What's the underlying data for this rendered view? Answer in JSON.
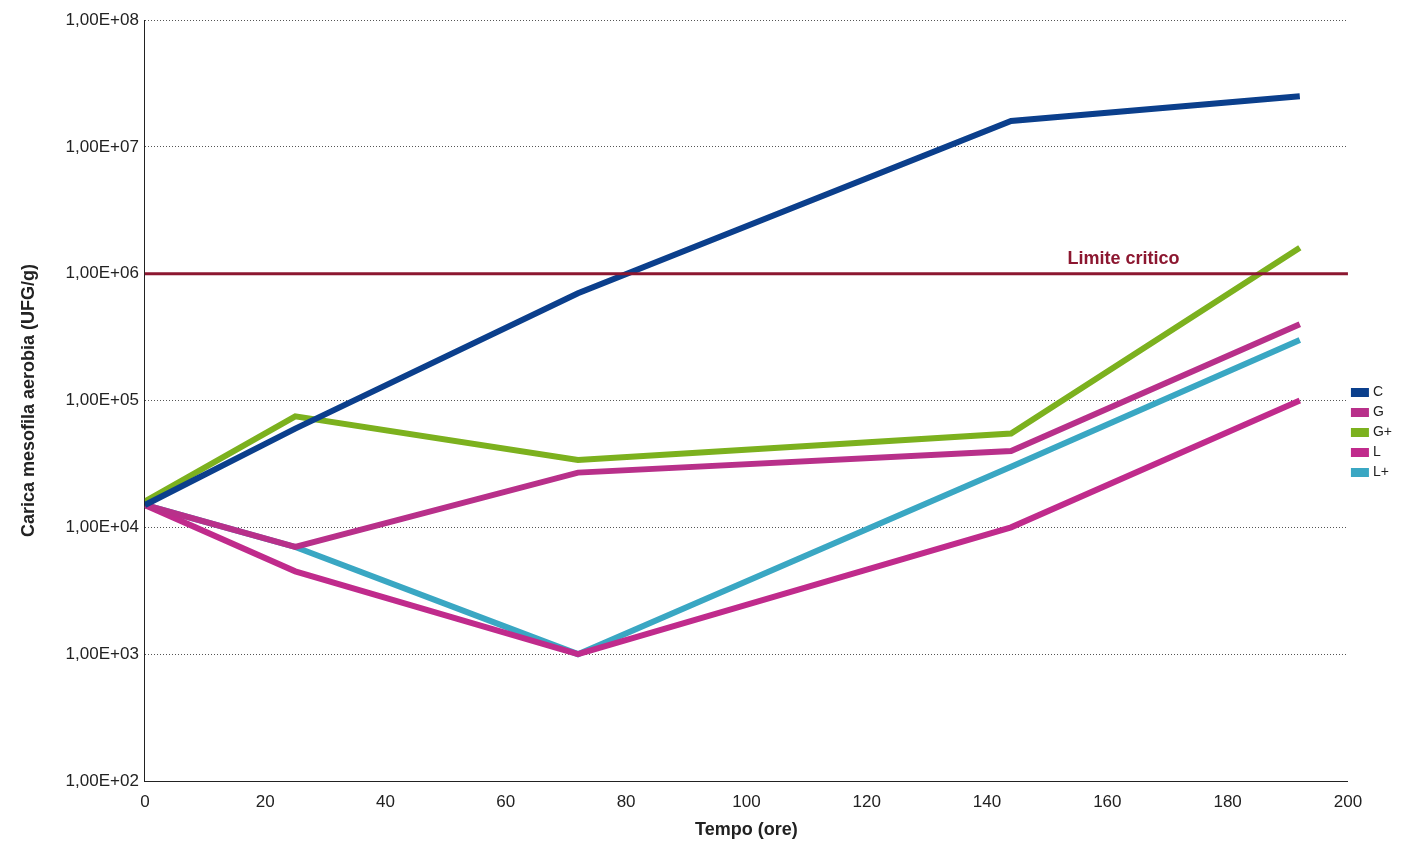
{
  "chart_data": {
    "type": "line",
    "x_label": "Tempo (ore)",
    "y_label": "Carica mesofila aerobia (UFG/g)",
    "x": [
      0,
      25,
      72,
      144,
      192
    ],
    "series": [
      {
        "name": "C",
        "color": "#0b3f8c",
        "values": [
          15000,
          60000,
          700000,
          16000000,
          25000000
        ]
      },
      {
        "name": "G",
        "color": "#b8308a",
        "values": [
          15000,
          7000,
          27000,
          40000,
          400000
        ]
      },
      {
        "name": "G+",
        "color": "#7cb11e",
        "values": [
          16000,
          75000,
          34000,
          55000,
          1600000
        ]
      },
      {
        "name": "L",
        "color": "#c02b8c",
        "values": [
          15000,
          4500,
          1000,
          10000,
          100000
        ]
      },
      {
        "name": "L+",
        "color": "#3aa7c3",
        "values": [
          15000,
          7000,
          1000,
          30000,
          300000
        ]
      }
    ],
    "annotations": [
      {
        "text": "Limite critico",
        "y": 1000000,
        "color": "#8c1730"
      }
    ],
    "xlim": [
      0,
      200
    ],
    "xticks": [
      0,
      20,
      40,
      60,
      80,
      100,
      120,
      140,
      160,
      180,
      200
    ],
    "ylim": [
      100,
      100000000
    ],
    "yticks": [
      {
        "value": 100,
        "label": "1,00E+02"
      },
      {
        "value": 1000,
        "label": "1,00E+03"
      },
      {
        "value": 10000,
        "label": "1,00E+04"
      },
      {
        "value": 100000,
        "label": "1,00E+05"
      },
      {
        "value": 1000000,
        "label": "1,00E+06"
      },
      {
        "value": 10000000,
        "label": "1,00E+07"
      },
      {
        "value": 100000000,
        "label": "1,00E+08"
      }
    ],
    "log": "y",
    "grid": true,
    "legend": "right"
  }
}
